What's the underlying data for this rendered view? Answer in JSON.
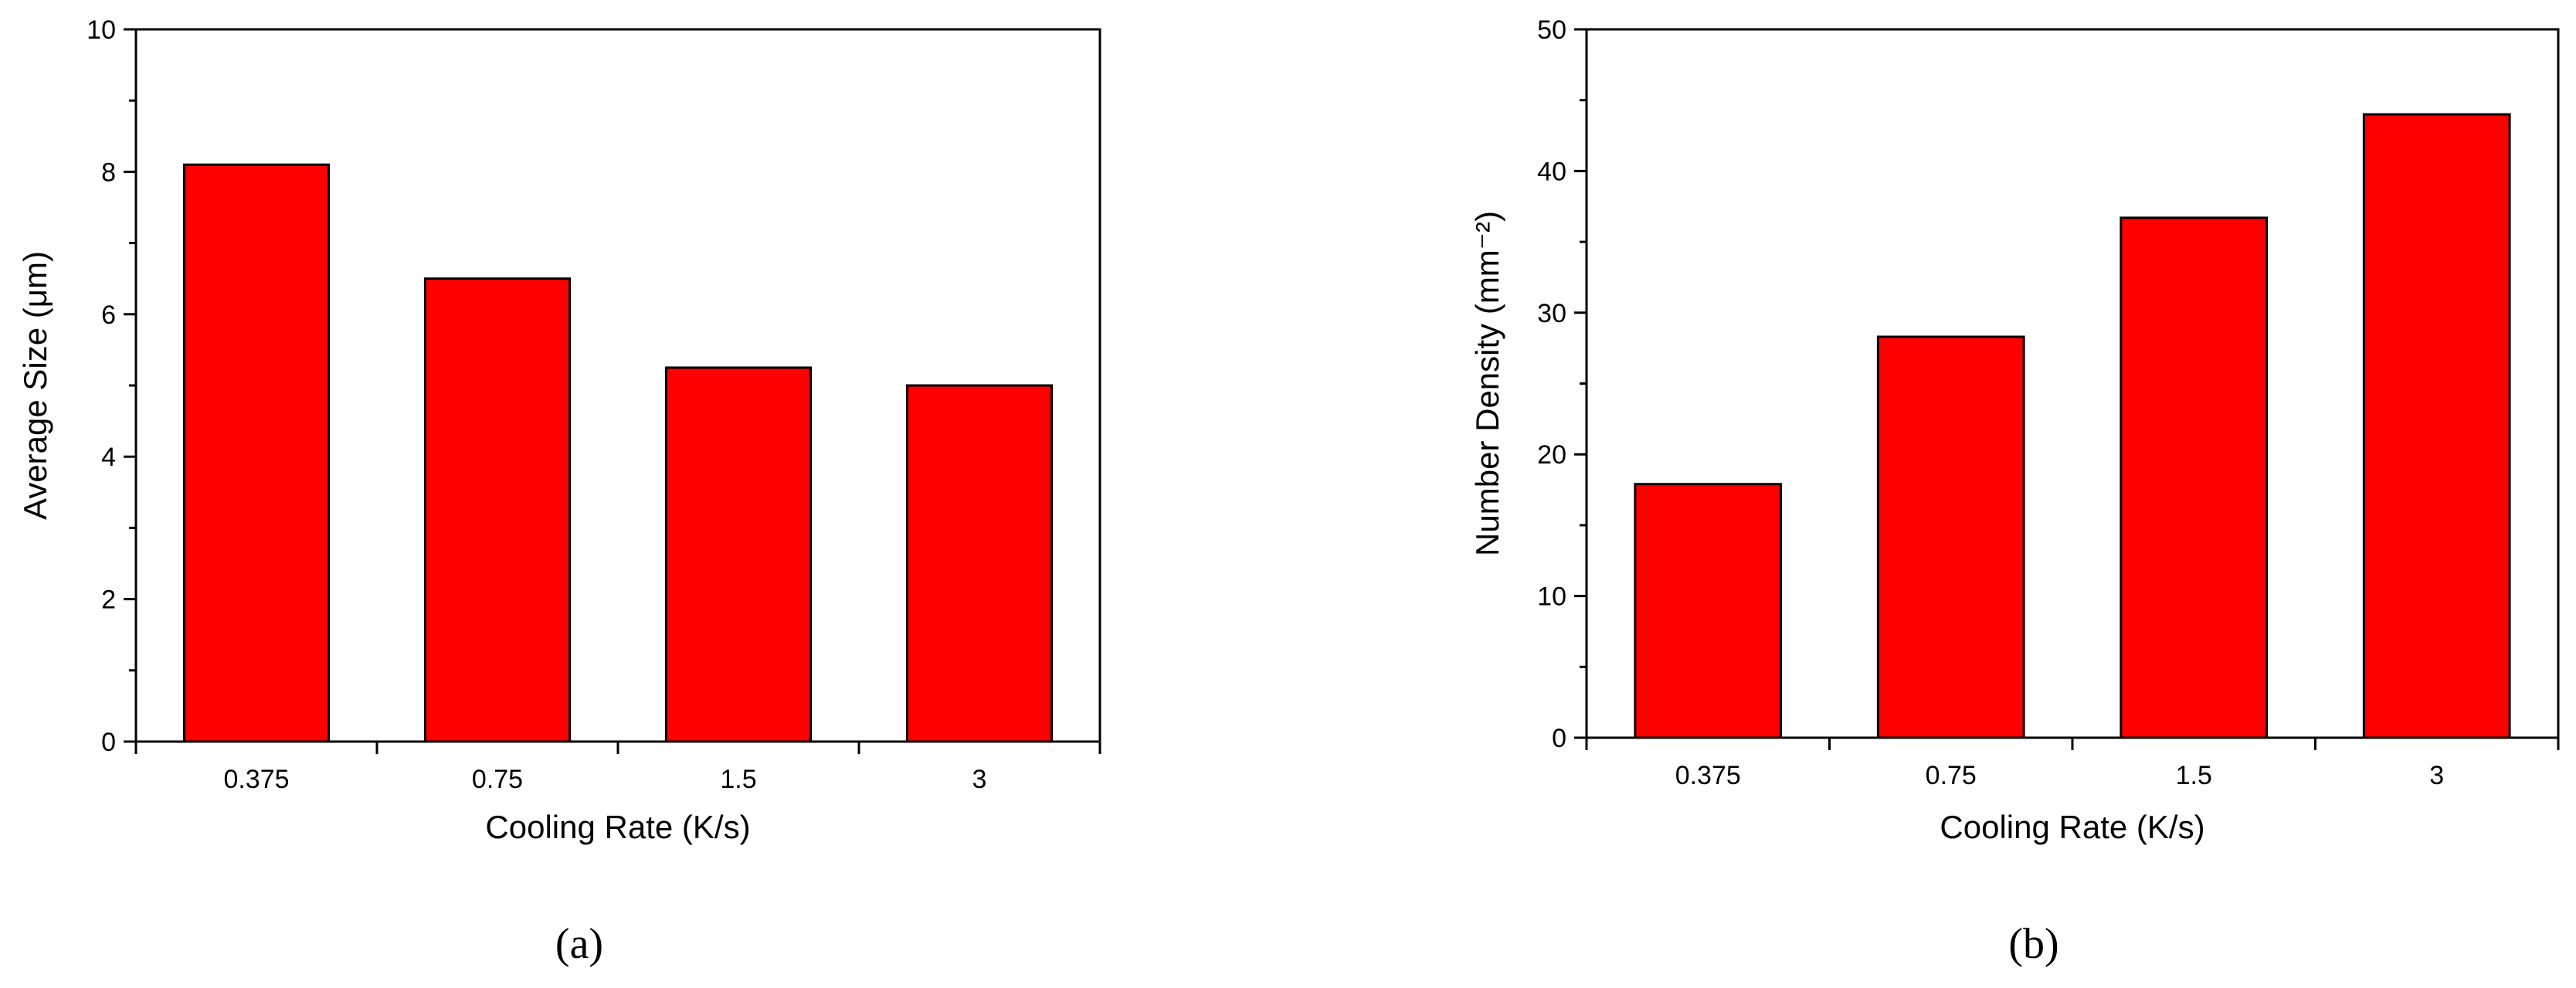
{
  "chart_data": [
    {
      "type": "bar",
      "panel_label": "(a)",
      "categories": [
        "0.375",
        "0.75",
        "1.5",
        "3"
      ],
      "values": [
        8.1,
        6.5,
        5.25,
        5.0
      ],
      "xlabel": "Cooling Rate (K/s)",
      "ylabel": "Average Size (μm)",
      "ylim": [
        0,
        10
      ],
      "yticks": [
        "0",
        "2",
        "4",
        "6",
        "8",
        "10"
      ],
      "bar_color": "#ff0000",
      "grid": false,
      "legend": "none"
    },
    {
      "type": "bar",
      "panel_label": "(b)",
      "categories": [
        "0.375",
        "0.75",
        "1.5",
        "3"
      ],
      "values": [
        17.9,
        28.3,
        36.7,
        44.0
      ],
      "xlabel": "Cooling Rate (K/s)",
      "ylabel": "Number Density (mm⁻²)",
      "ylim": [
        0,
        50
      ],
      "yticks": [
        "0",
        "10",
        "20",
        "30",
        "40",
        "50"
      ],
      "bar_color": "#ff0000",
      "grid": false,
      "legend": "none"
    }
  ]
}
